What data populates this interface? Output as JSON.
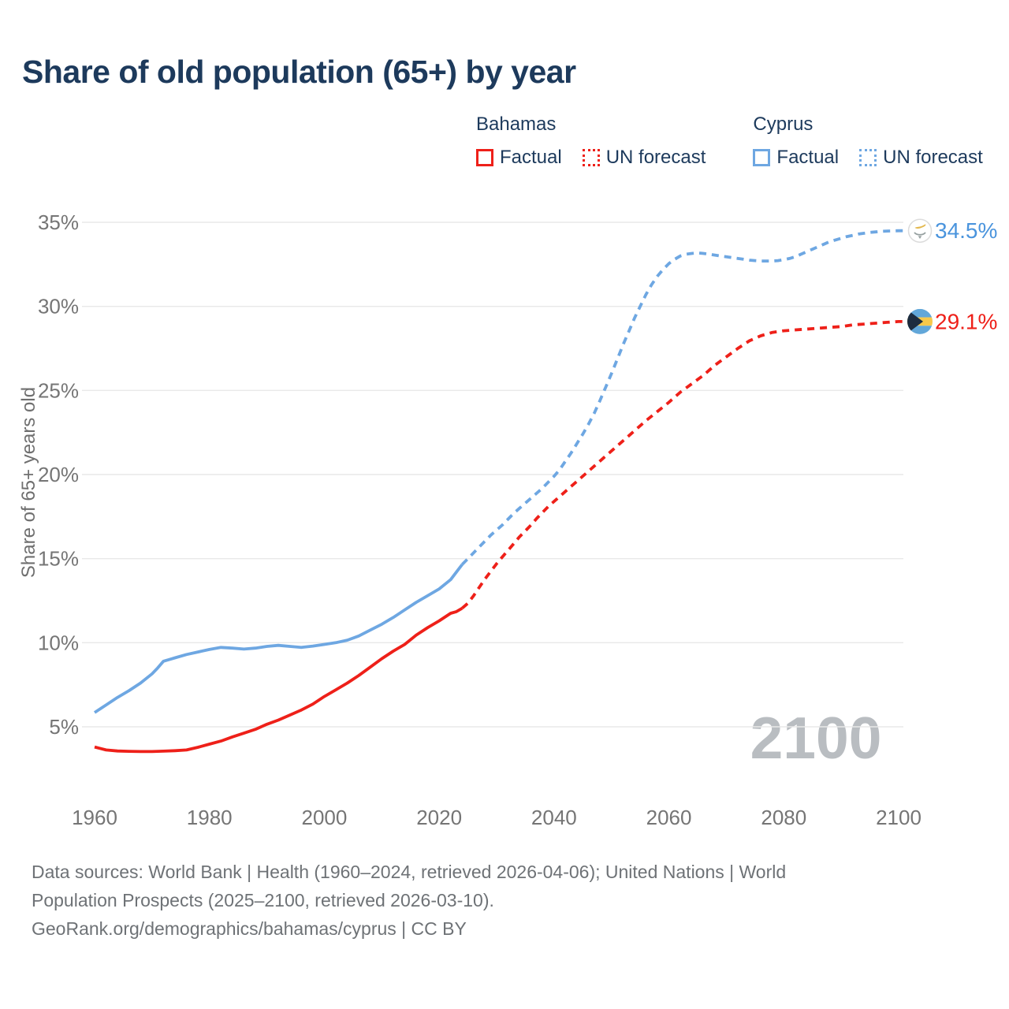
{
  "title": "Share of old population (65+) by year",
  "watermark": "2100",
  "colors": {
    "bahamas_red": "#ee2019",
    "cyprus_blue": "#6ea7e2",
    "cyprus_label_blue": "#4a94dd",
    "navy_text": "#1d3a5c",
    "tick_gray": "#757575",
    "axis_title_gray": "#6f6f6f",
    "gridline_gray": "#e9e9e9",
    "watermark_gray": "#b9bdc1",
    "footer_gray": "#6e7276"
  },
  "legend": {
    "groups": [
      {
        "name": "Bahamas",
        "color": "#ee2019",
        "items": [
          {
            "label": "Factual",
            "style": "solid"
          },
          {
            "label": "UN forecast",
            "style": "dashed"
          }
        ]
      },
      {
        "name": "Cyprus",
        "color": "#6ea7e2",
        "items": [
          {
            "label": "Factual",
            "style": "solid"
          },
          {
            "label": "UN forecast",
            "style": "dashed"
          }
        ]
      }
    ]
  },
  "footer": {
    "lines": [
      "Data sources: World Bank | Health (1960–2024, retrieved 2026-04-06); United Nations | World",
      "Population Prospects (2025–2100, retrieved 2026-03-10).",
      "GeoRank.org/demographics/bahamas/cyprus | CC BY"
    ]
  },
  "chart_data": {
    "type": "line",
    "title": "Share of old population (65+) by year",
    "xlabel": "",
    "ylabel": "Share of 65+ years old",
    "xlim": [
      1960,
      2100
    ],
    "ylim": [
      5,
      35
    ],
    "grid": "horizontal",
    "x_ticks": [
      1960,
      1980,
      2000,
      2020,
      2040,
      2060,
      2080,
      2100
    ],
    "y_ticks": [
      5,
      10,
      15,
      20,
      25,
      30,
      35
    ],
    "y_tick_labels": [
      "5%",
      "10%",
      "15%",
      "20%",
      "25%",
      "30%",
      "35%"
    ],
    "legend_position": "top-right",
    "series": [
      {
        "name": "Bahamas Factual",
        "color": "#ee2019",
        "style": "solid",
        "points": [
          [
            1960,
            3.8
          ],
          [
            1962,
            3.62
          ],
          [
            1964,
            3.56
          ],
          [
            1966,
            3.54
          ],
          [
            1968,
            3.53
          ],
          [
            1970,
            3.53
          ],
          [
            1972,
            3.55
          ],
          [
            1974,
            3.58
          ],
          [
            1976,
            3.62
          ],
          [
            1978,
            3.78
          ],
          [
            1980,
            3.97
          ],
          [
            1982,
            4.15
          ],
          [
            1984,
            4.4
          ],
          [
            1986,
            4.62
          ],
          [
            1988,
            4.85
          ],
          [
            1990,
            5.15
          ],
          [
            1992,
            5.4
          ],
          [
            1994,
            5.7
          ],
          [
            1996,
            6.0
          ],
          [
            1998,
            6.35
          ],
          [
            2000,
            6.8
          ],
          [
            2002,
            7.2
          ],
          [
            2004,
            7.6
          ],
          [
            2006,
            8.05
          ],
          [
            2008,
            8.55
          ],
          [
            2010,
            9.05
          ],
          [
            2012,
            9.5
          ],
          [
            2014,
            9.9
          ],
          [
            2016,
            10.45
          ],
          [
            2018,
            10.9
          ],
          [
            2020,
            11.3
          ],
          [
            2022,
            11.75
          ],
          [
            2023,
            11.85
          ],
          [
            2024,
            12.05
          ]
        ]
      },
      {
        "name": "Bahamas UN forecast",
        "color": "#ee2019",
        "style": "dashed",
        "points": [
          [
            2024,
            12.05
          ],
          [
            2025,
            12.35
          ],
          [
            2026,
            12.8
          ],
          [
            2027,
            13.3
          ],
          [
            2028,
            13.8
          ],
          [
            2029,
            14.25
          ],
          [
            2030,
            14.7
          ],
          [
            2031,
            15.1
          ],
          [
            2032,
            15.5
          ],
          [
            2033,
            15.9
          ],
          [
            2034,
            16.3
          ],
          [
            2035,
            16.65
          ],
          [
            2036,
            17.0
          ],
          [
            2037,
            17.4
          ],
          [
            2038,
            17.75
          ],
          [
            2039,
            18.1
          ],
          [
            2040,
            18.4
          ],
          [
            2042,
            19.0
          ],
          [
            2044,
            19.6
          ],
          [
            2046,
            20.2
          ],
          [
            2048,
            20.8
          ],
          [
            2050,
            21.4
          ],
          [
            2052,
            22.0
          ],
          [
            2054,
            22.6
          ],
          [
            2056,
            23.2
          ],
          [
            2058,
            23.75
          ],
          [
            2060,
            24.3
          ],
          [
            2062,
            24.9
          ],
          [
            2064,
            25.4
          ],
          [
            2066,
            25.9
          ],
          [
            2068,
            26.5
          ],
          [
            2070,
            27.0
          ],
          [
            2072,
            27.5
          ],
          [
            2074,
            27.95
          ],
          [
            2076,
            28.25
          ],
          [
            2078,
            28.45
          ],
          [
            2080,
            28.55
          ],
          [
            2082,
            28.6
          ],
          [
            2084,
            28.65
          ],
          [
            2086,
            28.7
          ],
          [
            2088,
            28.75
          ],
          [
            2090,
            28.8
          ],
          [
            2092,
            28.9
          ],
          [
            2094,
            28.95
          ],
          [
            2096,
            29.0
          ],
          [
            2098,
            29.05
          ],
          [
            2100,
            29.1
          ]
        ]
      },
      {
        "name": "Cyprus Factual",
        "color": "#6ea7e2",
        "style": "solid",
        "points": [
          [
            1960,
            5.85
          ],
          [
            1962,
            6.3
          ],
          [
            1964,
            6.75
          ],
          [
            1966,
            7.15
          ],
          [
            1968,
            7.6
          ],
          [
            1970,
            8.15
          ],
          [
            1971,
            8.5
          ],
          [
            1972,
            8.9
          ],
          [
            1973,
            9.0
          ],
          [
            1974,
            9.1
          ],
          [
            1976,
            9.3
          ],
          [
            1978,
            9.45
          ],
          [
            1980,
            9.6
          ],
          [
            1982,
            9.72
          ],
          [
            1984,
            9.68
          ],
          [
            1986,
            9.62
          ],
          [
            1988,
            9.68
          ],
          [
            1990,
            9.78
          ],
          [
            1992,
            9.84
          ],
          [
            1994,
            9.78
          ],
          [
            1996,
            9.72
          ],
          [
            1998,
            9.8
          ],
          [
            2000,
            9.9
          ],
          [
            2002,
            10.0
          ],
          [
            2004,
            10.15
          ],
          [
            2006,
            10.4
          ],
          [
            2008,
            10.75
          ],
          [
            2010,
            11.1
          ],
          [
            2012,
            11.5
          ],
          [
            2014,
            11.95
          ],
          [
            2016,
            12.4
          ],
          [
            2018,
            12.8
          ],
          [
            2020,
            13.2
          ],
          [
            2022,
            13.75
          ],
          [
            2023,
            14.2
          ],
          [
            2024,
            14.65
          ]
        ]
      },
      {
        "name": "Cyprus UN forecast",
        "color": "#6ea7e2",
        "style": "dashed",
        "points": [
          [
            2024,
            14.65
          ],
          [
            2025,
            15.0
          ],
          [
            2026,
            15.35
          ],
          [
            2027,
            15.7
          ],
          [
            2028,
            16.05
          ],
          [
            2029,
            16.4
          ],
          [
            2030,
            16.7
          ],
          [
            2031,
            17.0
          ],
          [
            2032,
            17.35
          ],
          [
            2033,
            17.7
          ],
          [
            2034,
            18.0
          ],
          [
            2035,
            18.3
          ],
          [
            2036,
            18.6
          ],
          [
            2037,
            18.9
          ],
          [
            2038,
            19.2
          ],
          [
            2039,
            19.55
          ],
          [
            2040,
            19.9
          ],
          [
            2041,
            20.3
          ],
          [
            2042,
            20.8
          ],
          [
            2043,
            21.3
          ],
          [
            2044,
            21.85
          ],
          [
            2045,
            22.4
          ],
          [
            2046,
            23.0
          ],
          [
            2047,
            23.65
          ],
          [
            2048,
            24.4
          ],
          [
            2049,
            25.2
          ],
          [
            2050,
            26.0
          ],
          [
            2051,
            26.85
          ],
          [
            2052,
            27.7
          ],
          [
            2053,
            28.5
          ],
          [
            2054,
            29.3
          ],
          [
            2055,
            30.0
          ],
          [
            2056,
            30.7
          ],
          [
            2057,
            31.3
          ],
          [
            2058,
            31.8
          ],
          [
            2059,
            32.2
          ],
          [
            2060,
            32.55
          ],
          [
            2061,
            32.8
          ],
          [
            2062,
            33.0
          ],
          [
            2063,
            33.1
          ],
          [
            2064,
            33.15
          ],
          [
            2065,
            33.18
          ],
          [
            2066,
            33.15
          ],
          [
            2067,
            33.1
          ],
          [
            2068,
            33.05
          ],
          [
            2069,
            33.0
          ],
          [
            2070,
            32.95
          ],
          [
            2071,
            32.9
          ],
          [
            2072,
            32.85
          ],
          [
            2073,
            32.8
          ],
          [
            2074,
            32.75
          ],
          [
            2075,
            32.72
          ],
          [
            2076,
            32.7
          ],
          [
            2077,
            32.7
          ],
          [
            2078,
            32.7
          ],
          [
            2079,
            32.72
          ],
          [
            2080,
            32.78
          ],
          [
            2081,
            32.85
          ],
          [
            2082,
            32.95
          ],
          [
            2083,
            33.1
          ],
          [
            2084,
            33.25
          ],
          [
            2085,
            33.4
          ],
          [
            2086,
            33.55
          ],
          [
            2087,
            33.7
          ],
          [
            2088,
            33.85
          ],
          [
            2089,
            33.95
          ],
          [
            2090,
            34.05
          ],
          [
            2091,
            34.15
          ],
          [
            2092,
            34.22
          ],
          [
            2093,
            34.3
          ],
          [
            2094,
            34.35
          ],
          [
            2095,
            34.4
          ],
          [
            2096,
            34.43
          ],
          [
            2097,
            34.46
          ],
          [
            2098,
            34.48
          ],
          [
            2100,
            34.5
          ]
        ]
      }
    ],
    "end_labels": [
      {
        "country": "cyprus",
        "text": "34.5%",
        "value": 34.5,
        "color": "#4a94dd",
        "flag": "cyprus-flag"
      },
      {
        "country": "bahamas",
        "text": "29.1%",
        "value": 29.1,
        "color": "#ee2019",
        "flag": "bahamas-flag"
      }
    ],
    "flag_colors": {
      "bahamas_aqua": "#62a7d9",
      "bahamas_gold": "#f7c84b",
      "bahamas_black": "#1d2c3f",
      "cyprus_copper": "#e3b84e",
      "cyprus_olive": "#96a0a0"
    }
  }
}
